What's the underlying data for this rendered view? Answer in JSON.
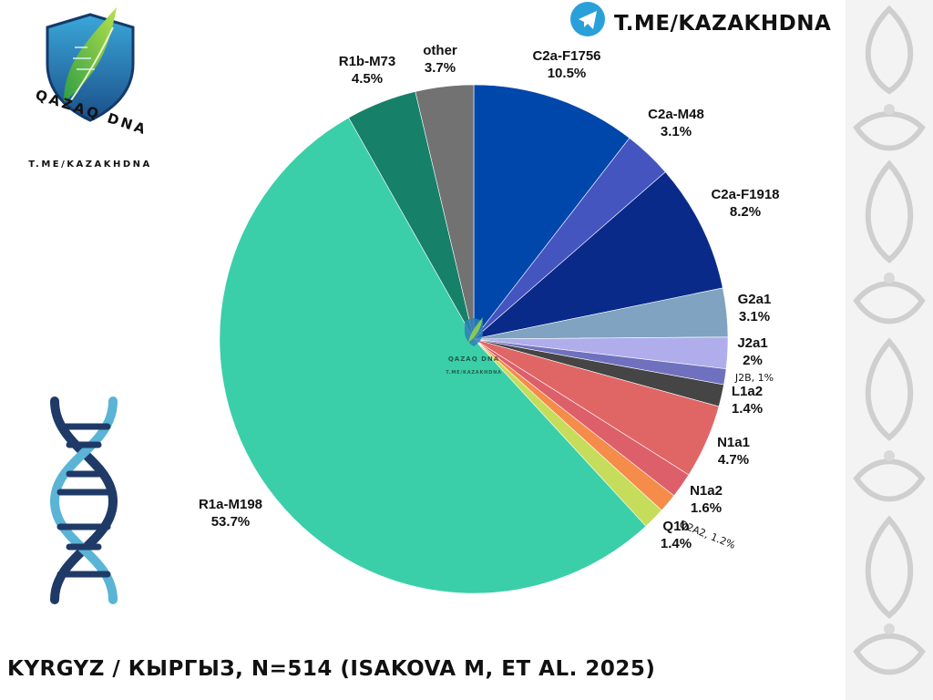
{
  "header": {
    "telegram_link": "T.ME/KAZAKHDNA",
    "logo_text": "QAZAQ DNA",
    "logo_link": "T.ME/KAZAKHDNA",
    "watermark_text": "QAZAQ DNA",
    "watermark_link": "T.ME/KAZAKHDNA"
  },
  "footer": {
    "caption": "KYRGYZ / КЫРГЫЗ, N=514 (ISAKOVA M, ET AL. 2025)"
  },
  "colors": {
    "telegram": "#2aa0da",
    "dna_dark": "#1f3a66",
    "dna_light": "#5ab4d6",
    "ornament": "#cfcfcf"
  },
  "icons": [
    "telegram-icon",
    "qazaq-dna-shield-logo",
    "dna-helix-icon",
    "kazakh-ornament-border"
  ],
  "chart_data": {
    "type": "pie",
    "title": "",
    "start_angle_deg": 0,
    "direction": "clockwise",
    "slices": [
      {
        "label": "C2a-F1756",
        "value": 10.5,
        "display": "10.5%",
        "color": "#0047ab"
      },
      {
        "label": "C2a-M48",
        "value": 3.1,
        "display": "3.1%",
        "color": "#4455c0"
      },
      {
        "label": "C2a-F1918",
        "value": 8.2,
        "display": "8.2%",
        "color": "#0a2a8a"
      },
      {
        "label": "G2a1",
        "value": 3.1,
        "display": "3.1%",
        "color": "#7fa3c0"
      },
      {
        "label": "J2a1",
        "value": 2,
        "display": "2%",
        "color": "#b0adec"
      },
      {
        "label": "J2B",
        "value": 1,
        "display": "J2B, 1%",
        "color": "#6f71bf",
        "small": true
      },
      {
        "label": "L1a2",
        "value": 1.4,
        "display": "1.4%",
        "color": "#454545"
      },
      {
        "label": "N1a1",
        "value": 4.7,
        "display": "4.7%",
        "color": "#e06666"
      },
      {
        "label": "N1a2",
        "value": 1.6,
        "display": "1.6%",
        "color": "#dd5f6a"
      },
      {
        "label": "O2A2",
        "value": 1.2,
        "display": "O2A2, 1.2%",
        "color": "#f58c4a",
        "small": true
      },
      {
        "label": "Q1b",
        "value": 1.4,
        "display": "1.4%",
        "color": "#c5dd5a"
      },
      {
        "label": "R1a-M198",
        "value": 53.7,
        "display": "53.7%",
        "color": "#3acfa8"
      },
      {
        "label": "R1b-M73",
        "value": 4.5,
        "display": "4.5%",
        "color": "#168068"
      },
      {
        "label": "other",
        "value": 3.7,
        "display": "3.7%",
        "color": "#727272"
      }
    ]
  }
}
